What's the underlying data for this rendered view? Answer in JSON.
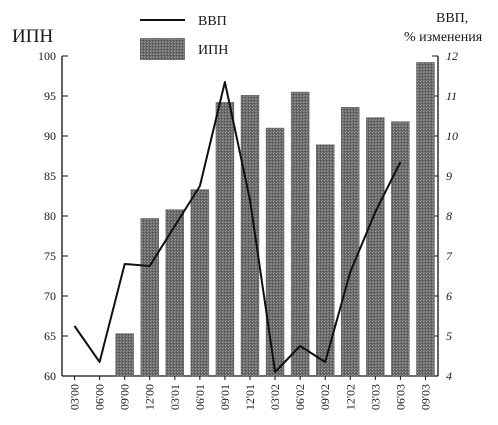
{
  "chart_data": {
    "type": "bar+line",
    "categories": [
      "03'00",
      "06'00",
      "09'00",
      "12'00",
      "03'01",
      "06'01",
      "09'01",
      "12'01",
      "03'02",
      "06'02",
      "09'02",
      "12'02",
      "03'03",
      "06'03",
      "09'03"
    ],
    "series": [
      {
        "name": "ИПН",
        "type": "bar",
        "axis": "left",
        "values": [
          null,
          null,
          65.3,
          79.7,
          80.8,
          83.3,
          94.2,
          95.1,
          91.0,
          95.5,
          88.9,
          93.6,
          92.3,
          91.8,
          99.2
        ]
      },
      {
        "name": "ВВП",
        "type": "line",
        "axis": "right",
        "values": [
          5.25,
          4.35,
          6.8,
          6.75,
          7.75,
          8.75,
          11.35,
          8.4,
          4.1,
          4.75,
          4.35,
          6.6,
          8.1,
          9.35,
          null
        ]
      }
    ],
    "left_axis": {
      "title": "ИПН",
      "range": [
        60,
        100
      ],
      "ticks": [
        60,
        65,
        70,
        75,
        80,
        85,
        90,
        95,
        100
      ]
    },
    "right_axis": {
      "title_line1": "ВВП,",
      "title_line2": "% изменения",
      "range": [
        4,
        12
      ],
      "ticks": [
        4,
        5,
        6,
        7,
        8,
        9,
        10,
        11,
        12
      ]
    },
    "legend": {
      "placement": "top",
      "line_label": "ВВП",
      "bar_label": "ИПН"
    },
    "grid": false
  }
}
